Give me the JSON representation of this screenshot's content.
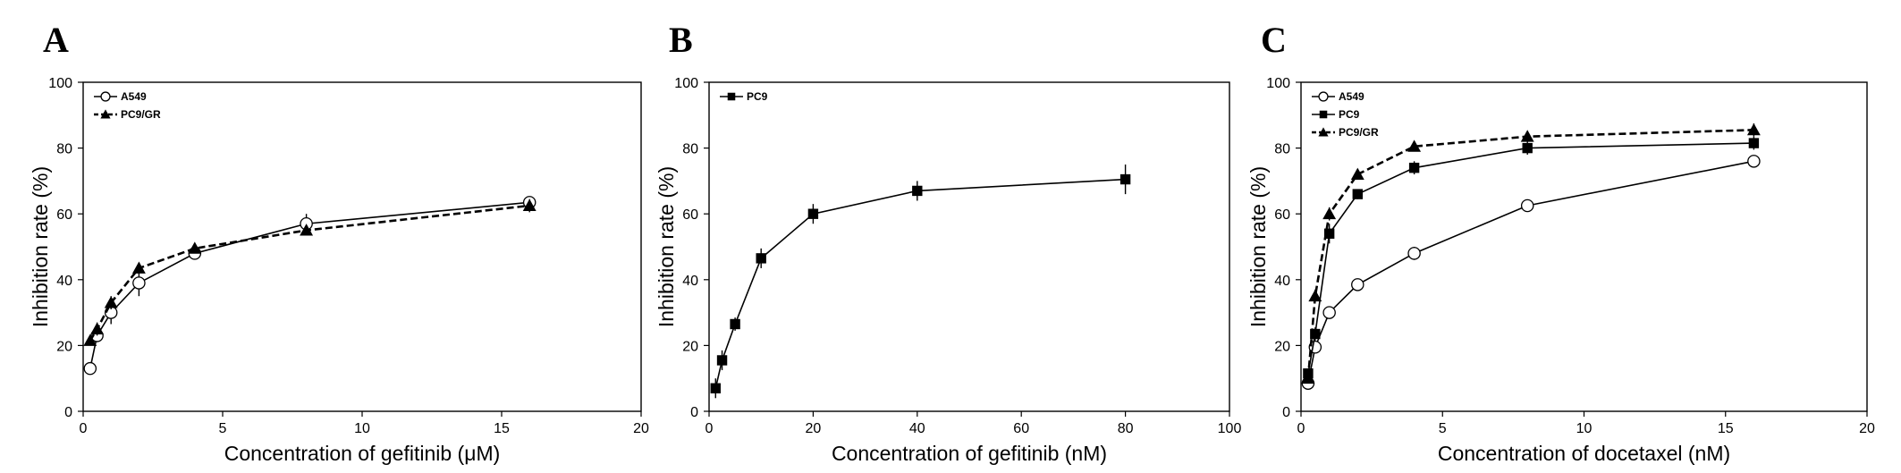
{
  "chart_data": [
    {
      "type": "line",
      "panel_label": "A",
      "xlabel": "Concentration of gefitinib (μM)",
      "ylabel": "Inhibition rate (%)",
      "xlim": [
        0,
        20
      ],
      "ylim": [
        0,
        100
      ],
      "xticks": [
        0,
        5,
        10,
        15,
        20
      ],
      "yticks": [
        0,
        20,
        40,
        60,
        80,
        100
      ],
      "grid": false,
      "legend": "top-left",
      "series": [
        {
          "name": "A549",
          "line_style": "solid",
          "marker": "open-circle",
          "color": "#000000",
          "x": [
            0.25,
            0.5,
            1,
            2,
            4,
            8,
            16
          ],
          "y": [
            13,
            23,
            30,
            39,
            48,
            57,
            63.5
          ],
          "err": [
            1.5,
            2,
            3.5,
            4,
            1.5,
            3,
            1.5
          ]
        },
        {
          "name": "PC9/GR",
          "line_style": "dashed",
          "marker": "filled-triangle",
          "color": "#000000",
          "x": [
            0.25,
            0.5,
            1,
            2,
            4,
            8,
            16
          ],
          "y": [
            21.5,
            25,
            33,
            43.5,
            49.5,
            55,
            62.5
          ],
          "err": [
            1.5,
            2,
            2,
            1.5,
            1,
            1.5,
            2
          ]
        }
      ]
    },
    {
      "type": "line",
      "panel_label": "B",
      "xlabel": "Concentration of gefitinib (nM)",
      "ylabel": "Inhibition rate (%)",
      "xlim": [
        0,
        100
      ],
      "ylim": [
        0,
        100
      ],
      "xticks": [
        0,
        20,
        40,
        60,
        80,
        100
      ],
      "yticks": [
        0,
        20,
        40,
        60,
        80,
        100
      ],
      "grid": false,
      "legend": "top-left",
      "series": [
        {
          "name": "PC9",
          "line_style": "solid",
          "marker": "filled-square",
          "color": "#000000",
          "x": [
            1.25,
            2.5,
            5,
            10,
            20,
            40,
            80
          ],
          "y": [
            7,
            15.5,
            26.5,
            46.5,
            60,
            67,
            70.5
          ],
          "err": [
            3,
            3,
            2,
            3,
            3,
            3,
            4.5
          ]
        }
      ]
    },
    {
      "type": "line",
      "panel_label": "C",
      "xlabel": "Concentration of docetaxel (nM)",
      "ylabel": "Inhibition rate (%)",
      "xlim": [
        0,
        20
      ],
      "ylim": [
        0,
        100
      ],
      "xticks": [
        0,
        5,
        10,
        15,
        20
      ],
      "yticks": [
        0,
        20,
        40,
        60,
        80,
        100
      ],
      "grid": false,
      "legend": "top-left",
      "series": [
        {
          "name": "A549",
          "line_style": "solid",
          "marker": "open-circle",
          "color": "#000000",
          "x": [
            0.25,
            0.5,
            1,
            2,
            4,
            8,
            16
          ],
          "y": [
            8.5,
            19.5,
            30,
            38.5,
            48,
            62.5,
            76
          ],
          "err": [
            1.5,
            1.5,
            1.5,
            1,
            2,
            1,
            1.5
          ]
        },
        {
          "name": "PC9",
          "line_style": "solid",
          "marker": "filled-square",
          "color": "#000000",
          "x": [
            0.25,
            0.5,
            1,
            2,
            4,
            8,
            16
          ],
          "y": [
            11.5,
            23.5,
            54,
            66,
            74,
            80,
            81.5
          ],
          "err": [
            1.5,
            2,
            3,
            1.5,
            2,
            2,
            2
          ]
        },
        {
          "name": "PC9/GR",
          "line_style": "dashed",
          "marker": "filled-triangle",
          "color": "#000000",
          "x": [
            0.25,
            0.5,
            1,
            2,
            4,
            8,
            16
          ],
          "y": [
            10,
            35,
            60,
            72,
            80.5,
            83.5,
            85.5
          ],
          "err": [
            1.5,
            2,
            2,
            1.5,
            1.5,
            1.5,
            2
          ]
        }
      ]
    }
  ]
}
